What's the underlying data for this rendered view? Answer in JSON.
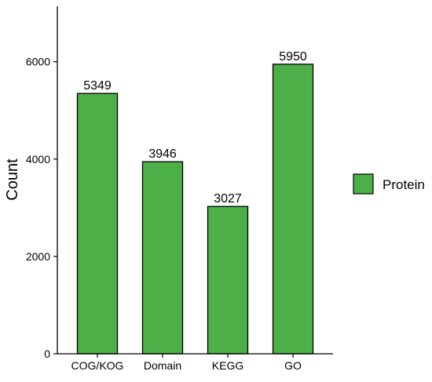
{
  "chart_data": {
    "type": "bar",
    "title": "",
    "xlabel": "",
    "ylabel": "Count",
    "categories": [
      "COG/KOG",
      "Domain",
      "KEGG",
      "GO"
    ],
    "series": [
      {
        "name": "Protein",
        "values": [
          5349,
          3946,
          3027,
          5950
        ]
      }
    ],
    "data_labels": [
      "5349",
      "3946",
      "3027",
      "5950"
    ],
    "yticks": [
      0,
      2000,
      4000,
      6000
    ],
    "ytick_labels": [
      "0",
      "2000",
      "4000",
      "6000"
    ],
    "ylim": [
      0,
      7140
    ],
    "grid": false,
    "legend": {
      "position": "right",
      "entries": [
        "Protein"
      ]
    },
    "colors": {
      "bar_fill": "#4CAF47",
      "bar_stroke": "#000000",
      "axis": "#000000"
    }
  }
}
